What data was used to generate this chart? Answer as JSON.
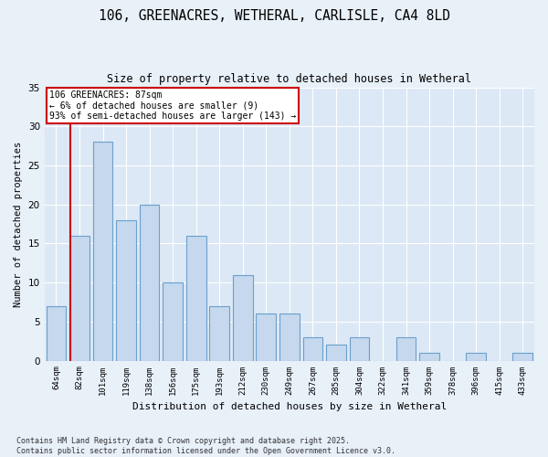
{
  "title_line1": "106, GREENACRES, WETHERAL, CARLISLE, CA4 8LD",
  "title_line2": "Size of property relative to detached houses in Wetheral",
  "xlabel": "Distribution of detached houses by size in Wetheral",
  "ylabel": "Number of detached properties",
  "categories": [
    "64sqm",
    "82sqm",
    "101sqm",
    "119sqm",
    "138sqm",
    "156sqm",
    "175sqm",
    "193sqm",
    "212sqm",
    "230sqm",
    "249sqm",
    "267sqm",
    "285sqm",
    "304sqm",
    "322sqm",
    "341sqm",
    "359sqm",
    "378sqm",
    "396sqm",
    "415sqm",
    "433sqm"
  ],
  "values": [
    7,
    16,
    28,
    18,
    20,
    10,
    16,
    7,
    11,
    6,
    6,
    3,
    2,
    3,
    0,
    3,
    1,
    0,
    1,
    0,
    1
  ],
  "bar_color": "#c5d8ed",
  "bar_edge_color": "#6aa0cc",
  "vline_color": "#cc0000",
  "annotation_text": "106 GREENACRES: 87sqm\n← 6% of detached houses are smaller (9)\n93% of semi-detached houses are larger (143) →",
  "annotation_box_color": "#ffffff",
  "annotation_box_edge": "#cc0000",
  "ylim": [
    0,
    35
  ],
  "yticks": [
    0,
    5,
    10,
    15,
    20,
    25,
    30,
    35
  ],
  "footnote": "Contains HM Land Registry data © Crown copyright and database right 2025.\nContains public sector information licensed under the Open Government Licence v3.0.",
  "bg_color": "#e8f0f8",
  "plot_bg_color": "#dce8f5"
}
